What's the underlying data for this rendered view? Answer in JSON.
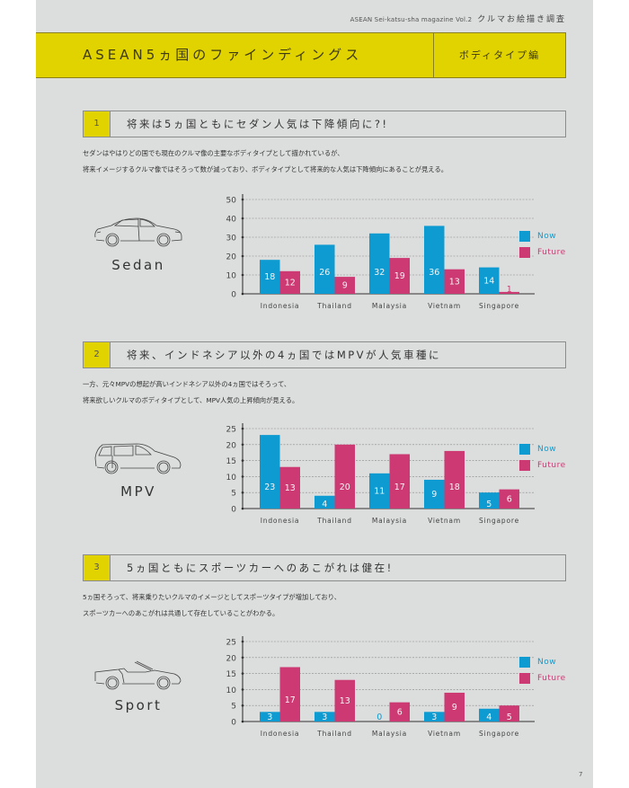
{
  "header": {
    "magazine": "ASEAN Sei-katsu-sha magazine Vol.2",
    "survey": "クルマお絵描き調査",
    "title": "ASEAN5ヵ国のファインディングス",
    "subtitle": "ボディタイプ編"
  },
  "colors": {
    "now": "#0e9bd1",
    "future": "#cd3a73",
    "accent_yellow": "#e1d300",
    "background": "#dcdddd"
  },
  "legend": {
    "now": "Now",
    "future": "Future"
  },
  "sections": [
    {
      "number": "1",
      "title": "将来は5ヵ国ともにセダン人気は下降傾向に?!",
      "desc_line1": "セダンはやはりどの国でも現在のクルマ像の主要なボディタイプとして描かれているが、",
      "desc_line2": "将来イメージするクルマ像ではそろって数が減っており、ボディタイプとして将来的な人気は下降傾向にあることが見える。",
      "car_label": "Sedan",
      "car_icon": "sedan-car-icon"
    },
    {
      "number": "2",
      "title": "将来、インドネシア以外の4ヵ国ではMPVが人気車種に",
      "desc_line1": "一方、元々MPVの想起が高いインドネシア以外の4ヵ国ではそろって、",
      "desc_line2": "将来欲しいクルマのボディタイプとして、MPV人気の上昇傾向が見える。",
      "car_label": "MPV",
      "car_icon": "mpv-car-icon"
    },
    {
      "number": "3",
      "title": "5ヵ国ともにスポーツカーへのあこがれは健在!",
      "desc_line1": "5ヵ国そろって、将来乗りたいクルマのイメージとしてスポーツタイプが増加しており、",
      "desc_line2": "スポーツカーへのあこがれは共通して存在していることがわかる。",
      "car_label": "Sport",
      "car_icon": "sport-car-icon"
    }
  ],
  "chart_data": [
    {
      "type": "bar",
      "title": "Sedan",
      "categories": [
        "Indonesia",
        "Thailand",
        "Malaysia",
        "Vietnam",
        "Singapore"
      ],
      "series": [
        {
          "name": "Now",
          "values": [
            18,
            26,
            32,
            36,
            14
          ]
        },
        {
          "name": "Future",
          "values": [
            12,
            9,
            19,
            13,
            1
          ]
        }
      ],
      "yticks": [
        0,
        10,
        20,
        30,
        40,
        50
      ],
      "ylim": [
        0,
        50
      ],
      "xlabel": "",
      "ylabel": "",
      "grid": true,
      "legend": "right"
    },
    {
      "type": "bar",
      "title": "MPV",
      "categories": [
        "Indonesia",
        "Thailand",
        "Malaysia",
        "Vietnam",
        "Singapore"
      ],
      "series": [
        {
          "name": "Now",
          "values": [
            23,
            4,
            11,
            9,
            5
          ]
        },
        {
          "name": "Future",
          "values": [
            13,
            20,
            17,
            18,
            6
          ]
        }
      ],
      "yticks": [
        0,
        5,
        10,
        15,
        20,
        25
      ],
      "ylim": [
        0,
        25
      ],
      "xlabel": "",
      "ylabel": "",
      "grid": true,
      "legend": "right"
    },
    {
      "type": "bar",
      "title": "Sport",
      "categories": [
        "Indonesia",
        "Thailand",
        "Malaysia",
        "Vietnam",
        "Singapore"
      ],
      "series": [
        {
          "name": "Now",
          "values": [
            3,
            3,
            0,
            3,
            4
          ]
        },
        {
          "name": "Future",
          "values": [
            17,
            13,
            6,
            9,
            5
          ]
        }
      ],
      "yticks": [
        0,
        5,
        10,
        15,
        20,
        25
      ],
      "ylim": [
        0,
        25
      ],
      "xlabel": "",
      "ylabel": "",
      "grid": true,
      "legend": "right"
    }
  ],
  "page_number": "7"
}
